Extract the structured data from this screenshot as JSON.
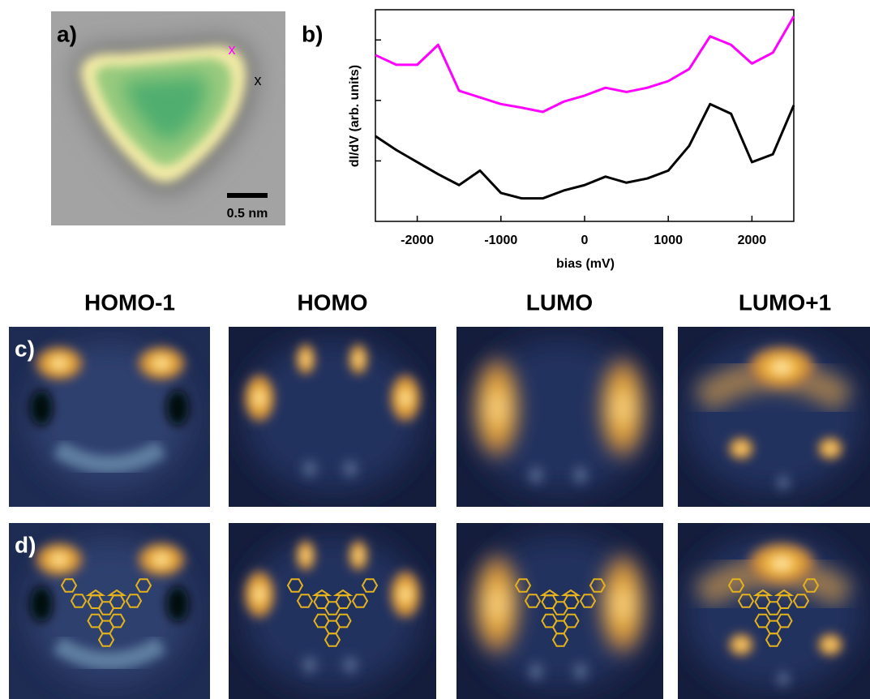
{
  "panels": {
    "a": {
      "label": "a)",
      "scale_bar": "0.5 nm",
      "markers": [
        "x",
        "x"
      ]
    },
    "b": {
      "label": "b)"
    },
    "c": {
      "label": "c)"
    },
    "d": {
      "label": "d)"
    }
  },
  "orbitals": [
    "HOMO-1",
    "HOMO",
    "LUMO",
    "LUMO+1"
  ],
  "chart_data": {
    "type": "line",
    "xlabel": "bias (mV)",
    "ylabel": "dI/dV (arb. units)",
    "x": [
      -2500,
      -2250,
      -2000,
      -1750,
      -1500,
      -1250,
      -1000,
      -750,
      -500,
      -250,
      0,
      250,
      500,
      750,
      1000,
      1250,
      1500,
      1750,
      2000,
      2250,
      2500
    ],
    "series": [
      {
        "color": "#ff00ff",
        "values": [
          2.75,
          2.59,
          2.59,
          2.92,
          2.16,
          2.05,
          1.94,
          1.88,
          1.81,
          1.98,
          2.08,
          2.21,
          2.14,
          2.21,
          2.32,
          2.52,
          3.06,
          2.92,
          2.61,
          2.79,
          3.39
        ]
      },
      {
        "color": "#000000",
        "values": [
          1.41,
          1.18,
          0.98,
          0.78,
          0.6,
          0.84,
          0.47,
          0.38,
          0.38,
          0.51,
          0.6,
          0.74,
          0.64,
          0.71,
          0.84,
          1.25,
          1.94,
          1.78,
          0.98,
          1.11,
          1.92
        ]
      }
    ],
    "xlim": [
      -2500,
      2500
    ],
    "xticks": [
      -2000,
      -1000,
      0,
      1000,
      2000
    ],
    "ylim": [
      0,
      3.5
    ],
    "yticks": [
      1,
      2,
      3
    ]
  }
}
